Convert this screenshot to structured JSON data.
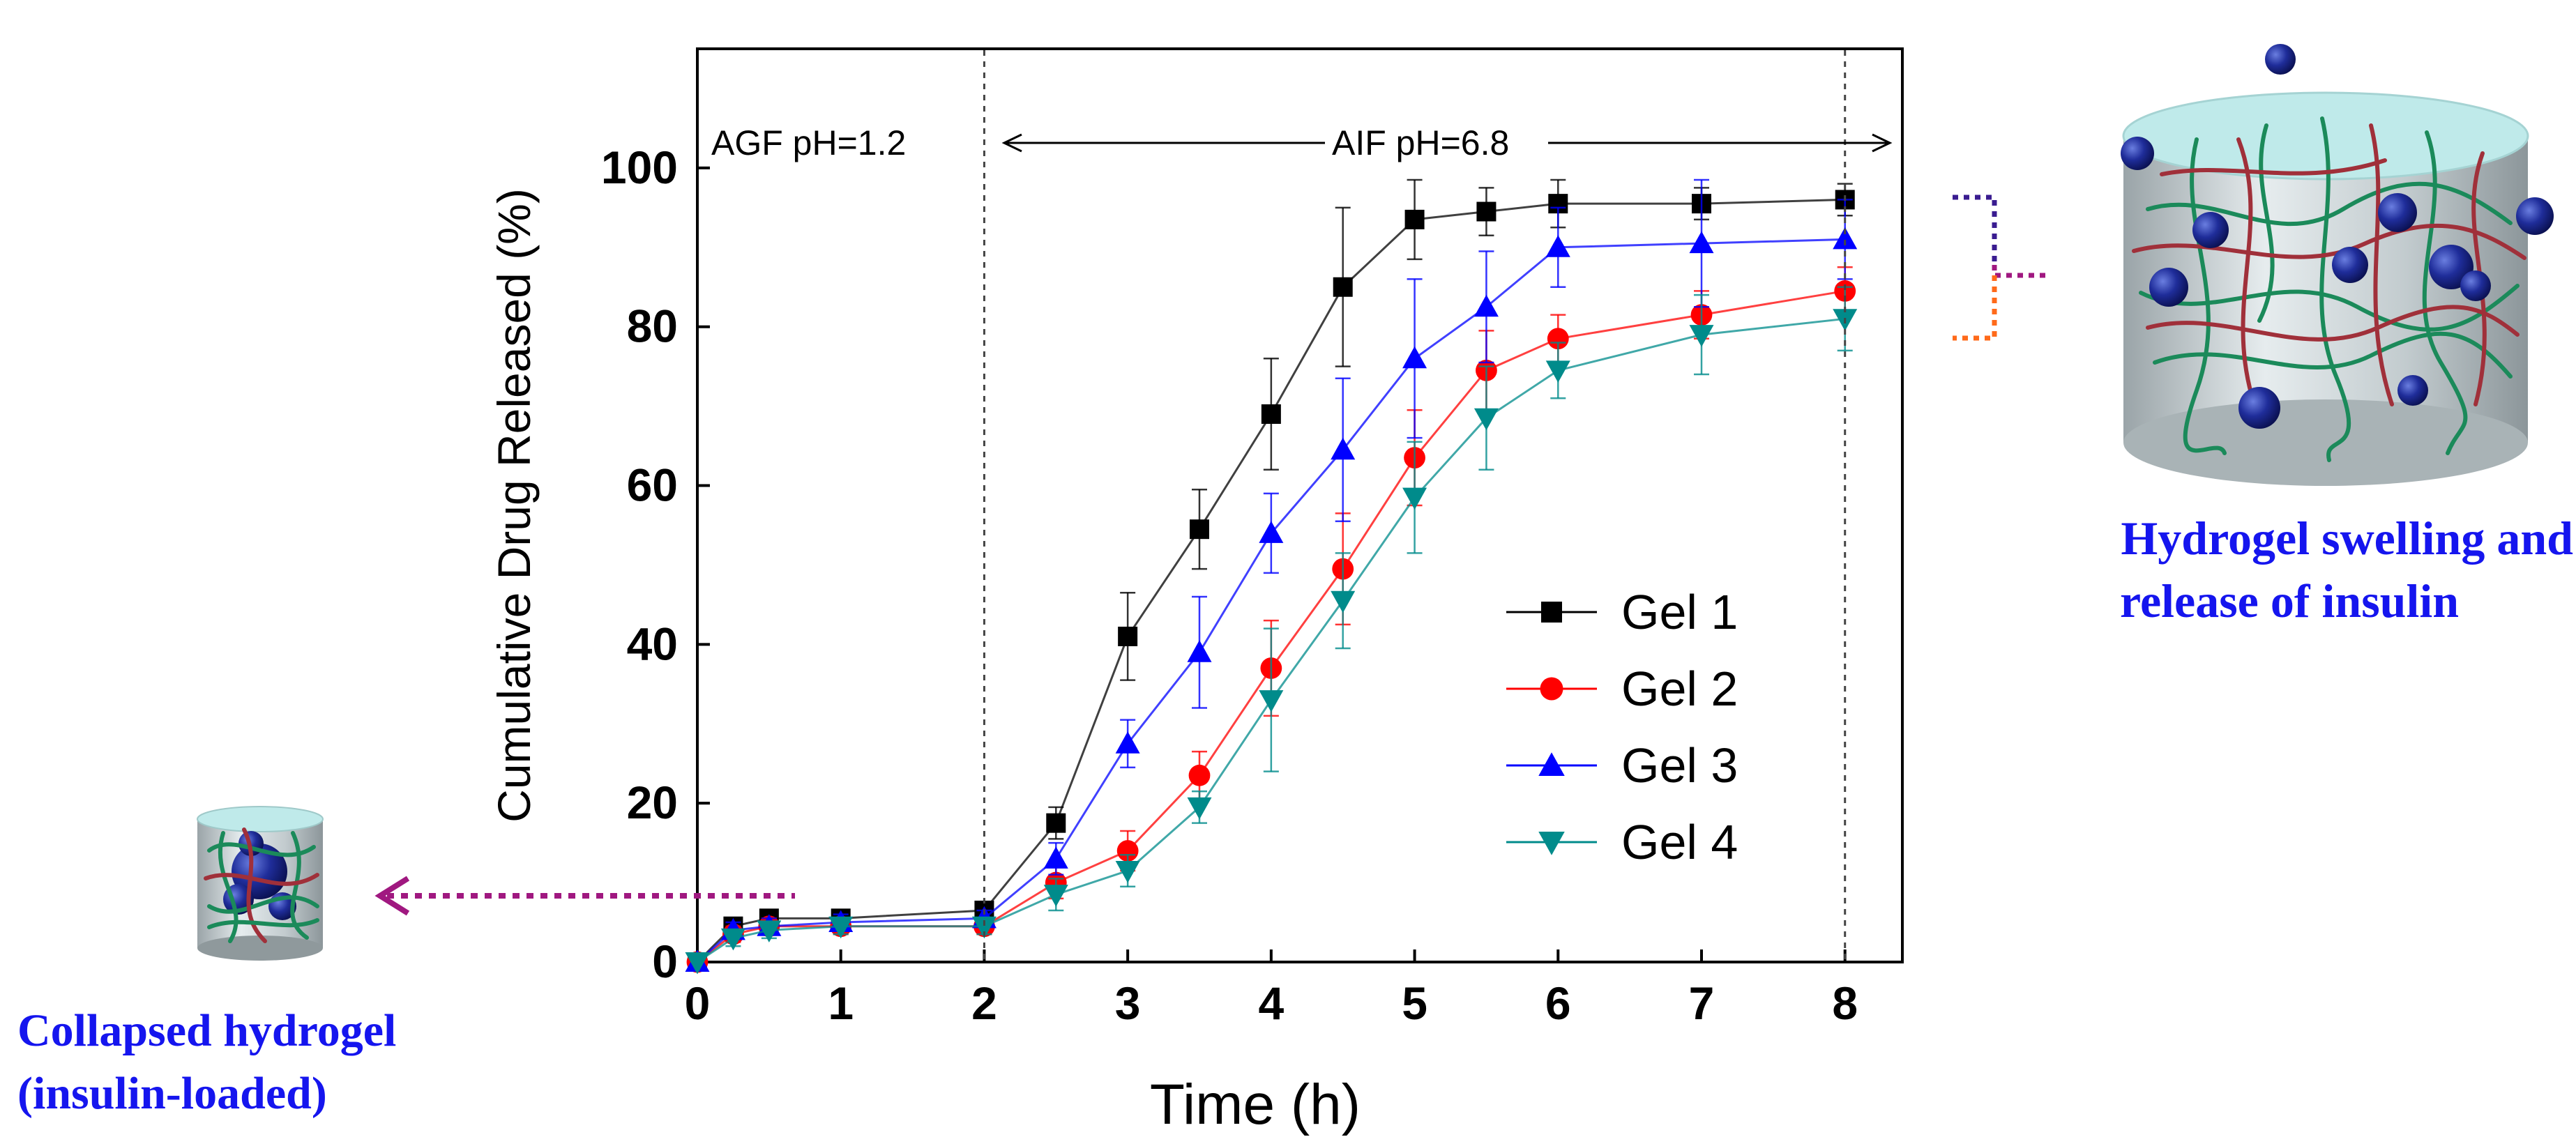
{
  "chart_data": {
    "type": "line",
    "xlabel": "Time (h)",
    "ylabel": "Cumulative Drug Released (%)",
    "xlim": [
      0,
      8.4
    ],
    "ylim": [
      0,
      115
    ],
    "xticks": [
      0,
      1,
      2,
      3,
      4,
      5,
      6,
      7,
      8
    ],
    "yticks": [
      0,
      20,
      40,
      60,
      80,
      100
    ],
    "legend_position": "center-right",
    "x": [
      0,
      0.25,
      0.5,
      1,
      2,
      2.5,
      3,
      3.5,
      4,
      4.5,
      5,
      5.5,
      6,
      7,
      8
    ],
    "series": [
      {
        "name": "Gel 1",
        "color": "#000000",
        "marker": "square",
        "values": [
          0,
          4.5,
          5.5,
          5.5,
          6.5,
          17.5,
          41,
          54.5,
          69,
          85,
          93.5,
          94.5,
          95.5,
          95.5,
          96
        ],
        "errors": [
          0,
          1,
          1,
          1,
          1,
          2,
          5.5,
          5,
          7,
          10,
          5,
          3,
          3,
          2,
          2
        ]
      },
      {
        "name": "Gel 2",
        "color": "#ff0000",
        "marker": "circle",
        "values": [
          0,
          3.5,
          4.5,
          4.5,
          4.5,
          10,
          14,
          23.5,
          37,
          49.5,
          63.5,
          74.5,
          78.5,
          81.5,
          84.5
        ],
        "errors": [
          0,
          1,
          1,
          1,
          1,
          2,
          2.5,
          3,
          6,
          7,
          6,
          5,
          3,
          3,
          3
        ]
      },
      {
        "name": "Gel 3",
        "color": "#0000ff",
        "marker": "triangle-up",
        "values": [
          0,
          4,
          4.5,
          5,
          5.5,
          13,
          27.5,
          39,
          54,
          64.5,
          76,
          82.5,
          90,
          90.5,
          91
        ],
        "errors": [
          0,
          1,
          1,
          1,
          1,
          2,
          3,
          7,
          5,
          9,
          10,
          7,
          5,
          8,
          5
        ]
      },
      {
        "name": "Gel 4",
        "color": "#008b8b",
        "marker": "triangle-down",
        "values": [
          0,
          3,
          4,
          4.5,
          4.5,
          8.5,
          11.5,
          19.5,
          33,
          45.5,
          58.5,
          68.5,
          74.5,
          79,
          81
        ],
        "errors": [
          0,
          1,
          1,
          1,
          1,
          2,
          2,
          2,
          9,
          6,
          7,
          6.5,
          3.5,
          5,
          4
        ]
      }
    ],
    "annotations": {
      "phase_agf": "AGF pH=1.2",
      "phase_aif": "AIF pH=6.8",
      "collapsed_line1": "Collapsed hydrogel",
      "collapsed_line2": "(insulin-loaded)",
      "swelling_line1": "Hydrogel swelling  and",
      "swelling_line2": "release of insulin"
    }
  },
  "colors": {
    "hydrogel_fill": "#bfeaea",
    "hydrogel_body": "#c8d0d2",
    "sphere": "#1a2a8c",
    "fiber_green": "#1b8a5a",
    "fiber_red": "#a0303a",
    "caption_blue": "#1515ee",
    "arrow_purple": "#a01880"
  }
}
